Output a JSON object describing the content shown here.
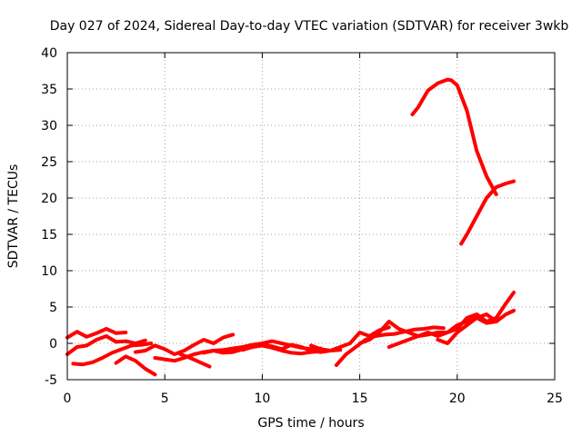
{
  "chart_data": {
    "type": "line",
    "title": "Day 027 of 2024, Sidereal Day-to-day VTEC variation (SDTVAR) for receiver 3wkb",
    "xlabel": "GPS time / hours",
    "ylabel": "SDTVAR / TECUs",
    "xlim": [
      0,
      25
    ],
    "ylim": [
      -5,
      40
    ],
    "xticks": [
      0,
      5,
      10,
      15,
      20,
      25
    ],
    "yticks": [
      -5,
      0,
      5,
      10,
      15,
      20,
      25,
      30,
      35,
      40
    ],
    "grid": true,
    "legend": "none",
    "color": "#ff0000",
    "series": [
      {
        "x": [
          0.0,
          0.5,
          1.0,
          1.5,
          2.0,
          2.5,
          3.0
        ],
        "y": [
          0.8,
          1.6,
          0.9,
          1.4,
          2.0,
          1.4,
          1.5
        ]
      },
      {
        "x": [
          0.0,
          0.5,
          1.0,
          1.5,
          2.0,
          2.5,
          3.0,
          3.5,
          4.0
        ],
        "y": [
          -1.5,
          -0.5,
          -0.3,
          0.5,
          1.0,
          0.2,
          0.3,
          0.0,
          0.4
        ]
      },
      {
        "x": [
          0.3,
          0.8,
          1.3,
          1.8,
          2.3,
          2.8,
          3.3,
          3.8,
          4.3
        ],
        "y": [
          -2.8,
          -2.9,
          -2.6,
          -2.0,
          -1.3,
          -0.8,
          -0.3,
          -0.2,
          0.0
        ]
      },
      {
        "x": [
          2.5,
          3.0,
          3.5,
          4.0,
          4.5
        ],
        "y": [
          -2.7,
          -1.8,
          -2.4,
          -3.5,
          -4.3
        ]
      },
      {
        "x": [
          4.5,
          5.0,
          5.5,
          6.0,
          6.5,
          7.0,
          7.5,
          8.0,
          8.5,
          9.0,
          9.5,
          10.0,
          10.5,
          11.0,
          11.5,
          12.0,
          12.5,
          13.0,
          13.5,
          14.0
        ],
        "y": [
          -2.0,
          -2.2,
          -2.4,
          -2.0,
          -1.5,
          -1.2,
          -1.0,
          -1.3,
          -1.2,
          -0.8,
          -0.5,
          -0.3,
          -0.6,
          -1.0,
          -1.3,
          -1.4,
          -1.2,
          -1.1,
          -1.0,
          -0.9
        ]
      },
      {
        "x": [
          3.5,
          4.0,
          4.5,
          5.0,
          5.5,
          6.0,
          6.5,
          7.0,
          7.5,
          8.0,
          8.5
        ],
        "y": [
          -1.2,
          -1.0,
          -0.3,
          -0.8,
          -1.5,
          -1.0,
          -0.2,
          0.5,
          0.0,
          0.8,
          1.2
        ]
      },
      {
        "x": [
          5.8,
          6.3,
          6.8,
          7.3
        ],
        "y": [
          -1.5,
          -2.0,
          -2.6,
          -3.2
        ]
      },
      {
        "x": [
          7.0,
          7.5,
          8.0,
          8.5,
          9.0,
          9.5,
          10.0,
          10.5,
          11.0,
          11.5,
          12.0,
          12.5,
          13.0
        ],
        "y": [
          -1.3,
          -1.0,
          -0.9,
          -0.7,
          -0.5,
          -0.2,
          0.0,
          0.3,
          0.0,
          -0.3,
          -0.6,
          -0.8,
          -0.7
        ]
      },
      {
        "x": [
          9.0,
          9.5,
          10.0,
          10.5,
          11.0,
          11.5,
          12.0,
          12.5,
          13.0,
          13.5
        ],
        "y": [
          -0.9,
          -0.5,
          -0.2,
          -0.4,
          -0.8,
          -0.2,
          -0.5,
          -1.0,
          -1.2,
          -1.0
        ]
      },
      {
        "x": [
          12.5,
          13.0,
          13.5,
          14.0,
          14.5,
          15.0,
          15.5,
          16.0,
          16.5
        ],
        "y": [
          -0.3,
          -0.8,
          -1.0,
          -0.5,
          0.0,
          1.5,
          1.0,
          1.8,
          2.2
        ]
      },
      {
        "x": [
          13.8,
          14.3,
          14.8,
          15.3,
          15.8,
          16.3,
          16.8,
          17.3,
          17.8,
          18.3,
          18.8,
          19.3
        ],
        "y": [
          -3.0,
          -1.5,
          -0.5,
          0.5,
          1.0,
          1.2,
          1.3,
          1.6,
          1.9,
          2.0,
          2.2,
          2.1
        ]
      },
      {
        "x": [
          15.0,
          15.5,
          16.0,
          16.5,
          17.0,
          17.5,
          18.0,
          18.5,
          19.0,
          19.5,
          20.0,
          20.5,
          21.0,
          21.5,
          22.0,
          22.5,
          22.9
        ],
        "y": [
          0.0,
          0.5,
          1.5,
          3.0,
          2.0,
          1.5,
          1.0,
          1.5,
          1.0,
          1.5,
          2.5,
          3.0,
          3.5,
          4.0,
          3.0,
          4.0,
          4.5
        ]
      },
      {
        "x": [
          16.5,
          17.0,
          17.5,
          18.0,
          18.5,
          19.0,
          19.5,
          20.0,
          20.5,
          21.0,
          21.5,
          22.0,
          22.5,
          22.9
        ],
        "y": [
          -0.5,
          0.0,
          0.5,
          1.0,
          1.2,
          1.5,
          1.5,
          2.0,
          3.5,
          4.0,
          3.0,
          3.5,
          5.5,
          7.0
        ]
      },
      {
        "x": [
          19.0,
          19.5,
          20.0,
          20.5,
          21.0,
          21.5,
          22.0
        ],
        "y": [
          0.5,
          0.0,
          1.5,
          2.5,
          3.5,
          2.8,
          3.0
        ]
      },
      {
        "x": [
          17.7,
          18.0,
          18.5,
          19.0,
          19.5,
          19.7,
          20.0,
          20.5,
          21.0,
          21.5,
          22.0
        ],
        "y": [
          31.5,
          32.5,
          34.8,
          35.8,
          36.3,
          36.2,
          35.5,
          32.0,
          26.5,
          23.0,
          20.5
        ]
      },
      {
        "x": [
          20.2,
          20.5,
          21.0,
          21.5,
          22.0,
          22.5,
          22.9
        ],
        "y": [
          13.7,
          15.0,
          17.5,
          20.0,
          21.5,
          22.0,
          22.3
        ]
      }
    ]
  }
}
